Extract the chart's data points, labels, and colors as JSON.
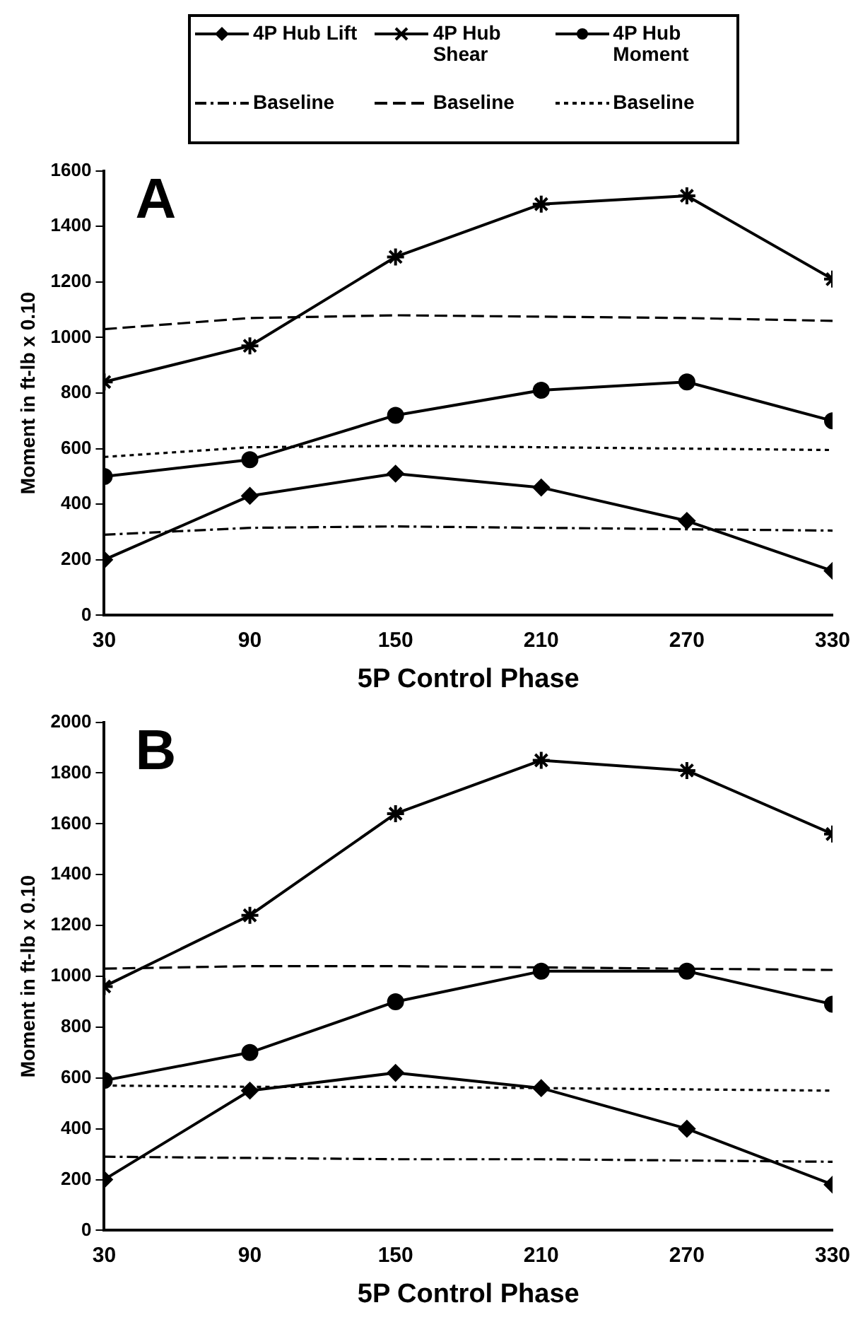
{
  "chart_data": [
    {
      "type": "line",
      "title": "A",
      "xlabel": "5P Control Phase",
      "ylabel": "Moment in ft-lb x 0.10",
      "x": [
        30,
        90,
        150,
        210,
        270,
        330
      ],
      "xlim": [
        30,
        330
      ],
      "xticks": [
        30,
        90,
        150,
        210,
        270,
        330
      ],
      "ylim": [
        0,
        1600
      ],
      "yticks": [
        0,
        200,
        400,
        600,
        800,
        1000,
        1200,
        1400,
        1600
      ],
      "grid": false,
      "legend": "top",
      "series": [
        {
          "name": "4P Hub Lift",
          "color": "#000000",
          "marker": "diamond",
          "line_style": "solid",
          "values": [
            200,
            430,
            510,
            460,
            340,
            160
          ]
        },
        {
          "name": "4P Hub Shear",
          "color": "#000000",
          "marker": "cross",
          "line_style": "solid",
          "values": [
            840,
            970,
            1290,
            1480,
            1510,
            1210
          ]
        },
        {
          "name": "4P Hub Moment",
          "color": "#000000",
          "marker": "circle",
          "line_style": "solid",
          "values": [
            500,
            560,
            720,
            810,
            840,
            700
          ]
        },
        {
          "name": "Baseline",
          "color": "#000000",
          "marker": "none",
          "line_style": "dashdot",
          "values": [
            290,
            315,
            320,
            315,
            310,
            305
          ]
        },
        {
          "name": "Baseline",
          "color": "#000000",
          "marker": "none",
          "line_style": "dashed",
          "values": [
            1030,
            1070,
            1080,
            1075,
            1070,
            1060
          ]
        },
        {
          "name": "Baseline",
          "color": "#000000",
          "marker": "none",
          "line_style": "dotted",
          "values": [
            570,
            605,
            610,
            605,
            600,
            595
          ]
        }
      ]
    },
    {
      "type": "line",
      "title": "B",
      "xlabel": "5P Control Phase",
      "ylabel": "Moment in ft-lb x 0.10",
      "x": [
        30,
        90,
        150,
        210,
        270,
        330
      ],
      "xlim": [
        30,
        330
      ],
      "xticks": [
        30,
        90,
        150,
        210,
        270,
        330
      ],
      "ylim": [
        0,
        2000
      ],
      "yticks": [
        0,
        200,
        400,
        600,
        800,
        1000,
        1200,
        1400,
        1600,
        1800,
        2000
      ],
      "grid": false,
      "series": [
        {
          "color": "#000000",
          "marker": "diamond",
          "line_style": "solid",
          "values": [
            200,
            550,
            620,
            560,
            400,
            180
          ]
        },
        {
          "color": "#000000",
          "marker": "cross",
          "line_style": "solid",
          "values": [
            960,
            1240,
            1640,
            1850,
            1810,
            1560
          ]
        },
        {
          "color": "#000000",
          "marker": "circle",
          "line_style": "solid",
          "values": [
            590,
            700,
            900,
            1020,
            1020,
            890
          ]
        },
        {
          "color": "#000000",
          "marker": "none",
          "line_style": "dashdot",
          "values": [
            290,
            285,
            280,
            280,
            275,
            270
          ]
        },
        {
          "color": "#000000",
          "marker": "none",
          "line_style": "dashed",
          "values": [
            1030,
            1040,
            1040,
            1035,
            1030,
            1025
          ]
        },
        {
          "color": "#000000",
          "marker": "none",
          "line_style": "dotted",
          "values": [
            570,
            565,
            565,
            560,
            555,
            550
          ]
        }
      ]
    }
  ]
}
